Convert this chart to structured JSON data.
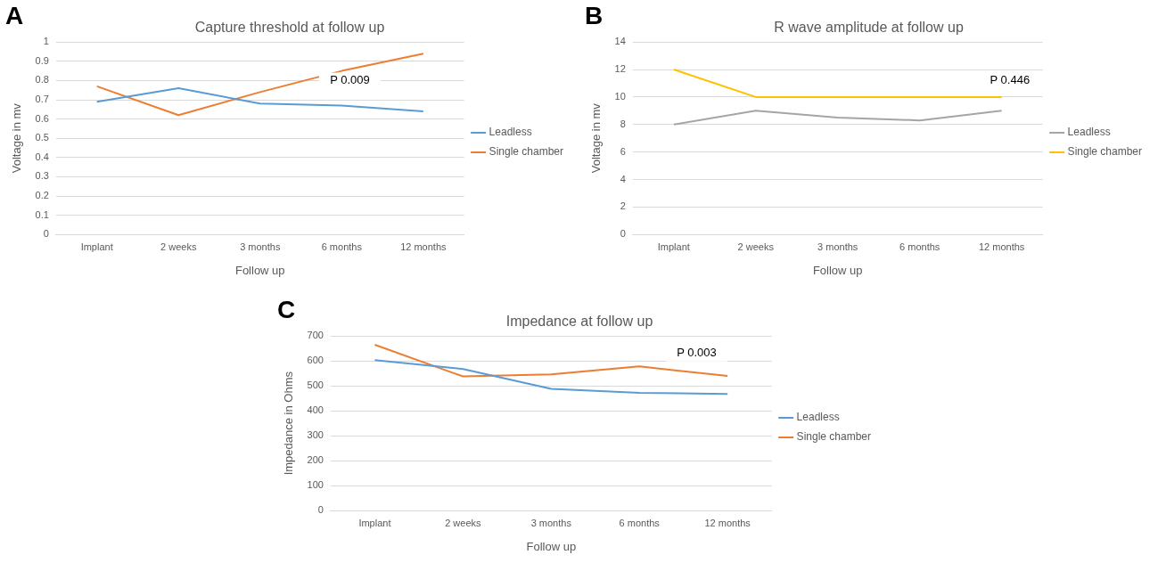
{
  "chart_data": [
    {
      "type": "line",
      "title": "Capture threshold at follow up",
      "xlabel": "Follow up",
      "ylabel": "Voltage in mv",
      "categories": [
        "Implant",
        "2 weeks",
        "3 months",
        "6 months",
        "12 months"
      ],
      "series": [
        {
          "name": "Leadless",
          "color": "#5b9bd5",
          "values": [
            0.69,
            0.76,
            0.68,
            0.67,
            0.64
          ]
        },
        {
          "name": "Single chamber",
          "color": "#ed7d31",
          "values": [
            0.77,
            0.62,
            0.74,
            0.85,
            0.94
          ]
        }
      ],
      "ylim": [
        0,
        1
      ],
      "yticks": [
        0,
        0.1,
        0.2,
        0.3,
        0.4,
        0.5,
        0.6,
        0.7,
        0.8,
        0.9,
        1
      ],
      "grid": "y",
      "legend": "right",
      "marker": "none",
      "line_style": "solid",
      "annotations": [
        "A",
        "P 0.009"
      ]
    },
    {
      "type": "line",
      "title": "R wave amplitude at follow up",
      "xlabel": "Follow up",
      "ylabel": "Voltage in mv",
      "categories": [
        "Implant",
        "2 weeks",
        "3 months",
        "6 months",
        "12 months"
      ],
      "series": [
        {
          "name": "Leadless",
          "color": "#a5a5a5",
          "values": [
            8,
            9,
            8.5,
            8.3,
            9
          ]
        },
        {
          "name": "Single chamber",
          "color": "#ffc000",
          "values": [
            12,
            10,
            10,
            10,
            10
          ]
        }
      ],
      "ylim": [
        0,
        14
      ],
      "yticks": [
        0,
        2,
        4,
        6,
        8,
        10,
        12,
        14
      ],
      "grid": "y",
      "legend": "right",
      "marker": "none",
      "line_style": "solid",
      "annotations": [
        "B",
        "P 0.446"
      ]
    },
    {
      "type": "line",
      "title": "Impedance at follow up",
      "xlabel": "Follow up",
      "ylabel": "Impedance in Ohms",
      "categories": [
        "Implant",
        "2 weeks",
        "3 months",
        "6 months",
        "12 months"
      ],
      "series": [
        {
          "name": "Leadless",
          "color": "#5b9bd5",
          "values": [
            603,
            568,
            488,
            472,
            468
          ]
        },
        {
          "name": "Single chamber",
          "color": "#ed7d31",
          "values": [
            665,
            538,
            546,
            578,
            540
          ]
        }
      ],
      "ylim": [
        0,
        700
      ],
      "yticks": [
        0,
        100,
        200,
        300,
        400,
        500,
        600,
        700
      ],
      "grid": "y",
      "legend": "right",
      "marker": "none",
      "line_style": "solid",
      "annotations": [
        "C",
        "P 0.003"
      ]
    }
  ]
}
